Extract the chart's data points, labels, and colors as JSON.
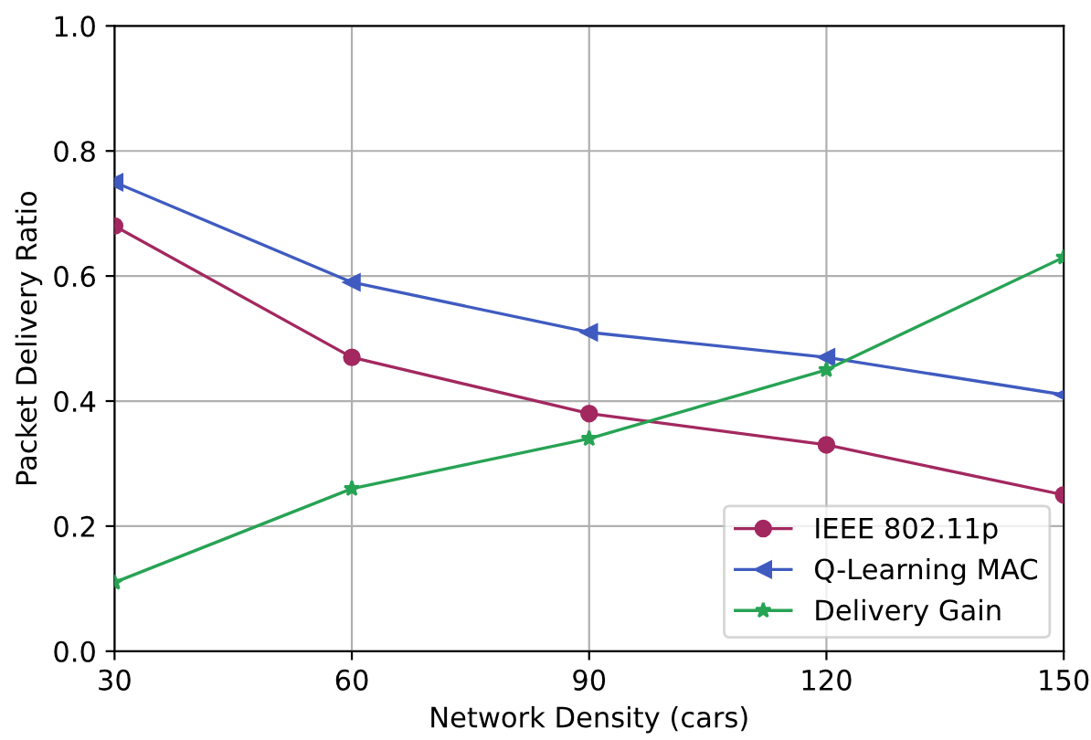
{
  "chart_data": {
    "type": "line",
    "xlabel": "Network Density (cars)",
    "ylabel": "Packet Delivery Ratio",
    "x": [
      30,
      60,
      90,
      120,
      150
    ],
    "series": [
      {
        "name": "IEEE 802.11p",
        "color": "#a3285f",
        "marker": "circle",
        "values": [
          0.68,
          0.47,
          0.38,
          0.33,
          0.25
        ]
      },
      {
        "name": "Q-Learning MAC",
        "color": "#3f5bc0",
        "marker": "triangle",
        "values": [
          0.75,
          0.59,
          0.51,
          0.47,
          0.41
        ]
      },
      {
        "name": "Delivery Gain",
        "color": "#27a354",
        "marker": "star",
        "values": [
          0.11,
          0.26,
          0.34,
          0.45,
          0.63
        ]
      }
    ],
    "xlim": [
      30,
      150
    ],
    "xticks": [
      30,
      60,
      90,
      120,
      150
    ],
    "ylim": [
      0,
      1.0
    ],
    "yticks": [
      {
        "value": 0,
        "label": "0.0"
      },
      0.2,
      0.4,
      0.6,
      0.8,
      {
        "value": 1.0,
        "label": "1.0"
      }
    ],
    "grid": true,
    "legend": "bottom right",
    "line_style": "solid"
  }
}
